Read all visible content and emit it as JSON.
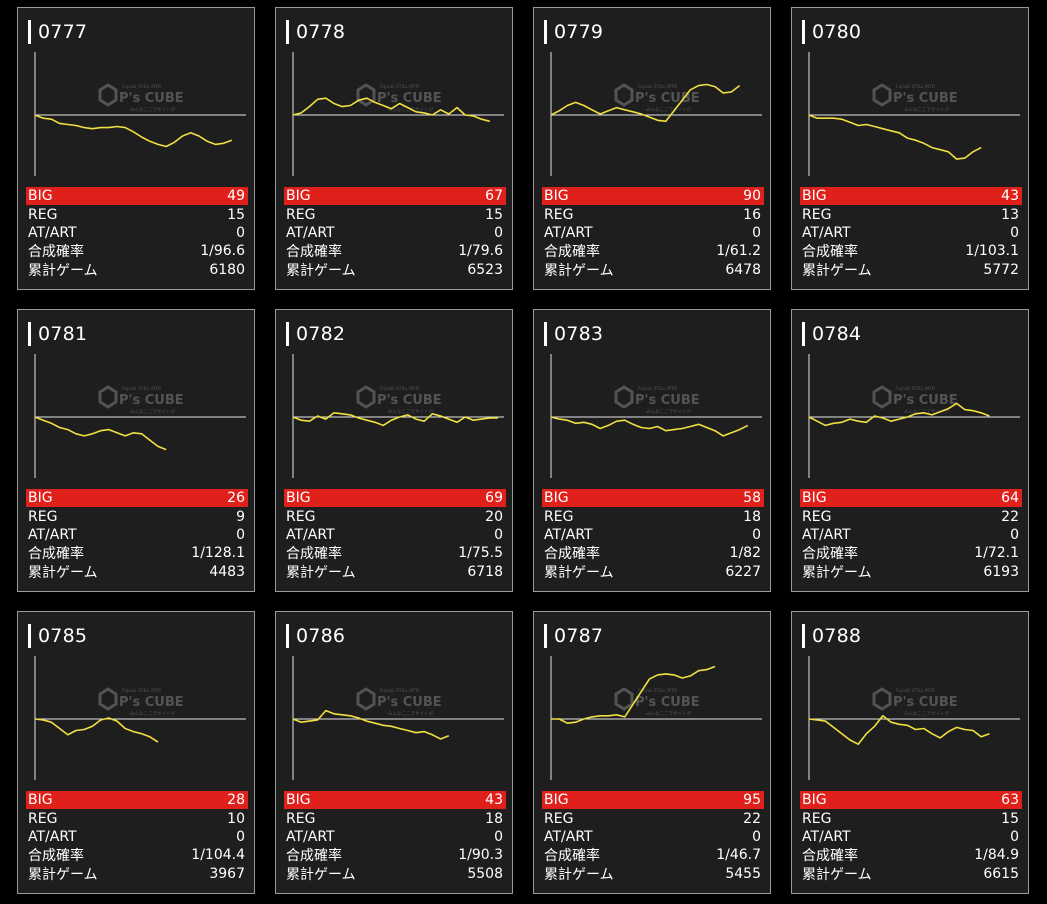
{
  "colors": {
    "graph_line": "#f0e040",
    "big_bg": "#e0201b",
    "card_bg": "#1e1e1e"
  },
  "watermark": {
    "brand": "P's CUBE",
    "small_top": "Fujinki STILL MTR",
    "small_bottom": "みんなここでサイトが"
  },
  "labels": {
    "big": "BIG",
    "reg": "REG",
    "atart": "AT/ART",
    "rate": "合成確率",
    "games": "累計ゲーム"
  },
  "machines": [
    {
      "number": "0777",
      "big": "49",
      "reg": "15",
      "atart": "0",
      "rate": "1/96.6",
      "games": "6180",
      "graph": [
        0,
        -3,
        -4,
        -8,
        -9,
        -10,
        -12,
        -13,
        -12,
        -12,
        -11,
        -12,
        -16,
        -21,
        -25,
        -28,
        -30,
        -26,
        -20,
        -17,
        -20,
        -25,
        -28,
        -27,
        -24
      ]
    },
    {
      "number": "0778",
      "big": "67",
      "reg": "15",
      "atart": "0",
      "rate": "1/79.6",
      "games": "6523",
      "graph": [
        0,
        2,
        8,
        15,
        16,
        11,
        8,
        9,
        14,
        16,
        12,
        9,
        6,
        11,
        7,
        3,
        2,
        0,
        5,
        1,
        7,
        0,
        -1,
        -4,
        -6
      ]
    },
    {
      "number": "0779",
      "big": "90",
      "reg": "16",
      "atart": "0",
      "rate": "1/61.2",
      "games": "6478",
      "graph": [
        0,
        4,
        9,
        12,
        9,
        5,
        1,
        4,
        7,
        5,
        3,
        1,
        -2,
        -5,
        -6,
        4,
        14,
        24,
        28,
        29,
        27,
        21,
        22,
        28
      ]
    },
    {
      "number": "0780",
      "big": "43",
      "reg": "13",
      "atart": "0",
      "rate": "1/103.1",
      "games": "5772",
      "graph": [
        0,
        -3,
        -3,
        -3,
        -4,
        -7,
        -10,
        -9,
        -11,
        -13,
        -15,
        -17,
        -22,
        -24,
        -27,
        -31,
        -33,
        -35,
        -42,
        -41,
        -35,
        -31
      ]
    },
    {
      "number": "0781",
      "big": "26",
      "reg": "9",
      "atart": "0",
      "rate": "1/128.1",
      "games": "4483",
      "graph": [
        0,
        -3,
        -6,
        -10,
        -12,
        -16,
        -18,
        -16,
        -13,
        -12,
        -15,
        -18,
        -15,
        -16,
        -22,
        -28,
        -31
      ]
    },
    {
      "number": "0782",
      "big": "69",
      "reg": "20",
      "atart": "0",
      "rate": "1/75.5",
      "games": "6718",
      "graph": [
        0,
        -3,
        -4,
        1,
        -2,
        4,
        3,
        2,
        -1,
        -3,
        -5,
        -8,
        -3,
        0,
        2,
        -2,
        -4,
        3,
        1,
        -2,
        -5,
        0,
        -3,
        -2,
        -1,
        -1
      ]
    },
    {
      "number": "0783",
      "big": "58",
      "reg": "18",
      "atart": "0",
      "rate": "1/82",
      "games": "6227",
      "graph": [
        0,
        -2,
        -3,
        -6,
        -5,
        -7,
        -11,
        -8,
        -4,
        -3,
        -7,
        -10,
        -11,
        -9,
        -13,
        -12,
        -11,
        -9,
        -7,
        -10,
        -13,
        -18,
        -15,
        -12,
        -8
      ]
    },
    {
      "number": "0784",
      "big": "64",
      "reg": "22",
      "atart": "0",
      "rate": "1/72.1",
      "games": "6193",
      "graph": [
        0,
        -4,
        -8,
        -6,
        -5,
        -2,
        -4,
        -5,
        1,
        -1,
        -4,
        -2,
        0,
        3,
        4,
        2,
        5,
        8,
        13,
        7,
        6,
        4,
        1
      ]
    },
    {
      "number": "0785",
      "big": "28",
      "reg": "10",
      "atart": "0",
      "rate": "1/104.4",
      "games": "3967",
      "graph": [
        0,
        -1,
        -3,
        -9,
        -15,
        -11,
        -10,
        -7,
        -1,
        1,
        -2,
        -9,
        -12,
        -14,
        -17,
        -22
      ]
    },
    {
      "number": "0786",
      "big": "43",
      "reg": "18",
      "atart": "0",
      "rate": "1/90.3",
      "games": "5508",
      "graph": [
        0,
        -3,
        -2,
        -1,
        8,
        5,
        4,
        3,
        1,
        -2,
        -4,
        -6,
        -7,
        -9,
        -11,
        -13,
        -12,
        -15,
        -19,
        -16
      ]
    },
    {
      "number": "0787",
      "big": "95",
      "reg": "22",
      "atart": "0",
      "rate": "1/46.7",
      "games": "5455",
      "graph": [
        0,
        0,
        -4,
        -3,
        0,
        2,
        3,
        3,
        4,
        2,
        14,
        26,
        38,
        42,
        43,
        42,
        39,
        41,
        46,
        47,
        50
      ]
    },
    {
      "number": "0788",
      "big": "63",
      "reg": "15",
      "atart": "0",
      "rate": "1/84.9",
      "games": "6615",
      "graph": [
        0,
        -1,
        -2,
        -8,
        -14,
        -20,
        -24,
        -14,
        -7,
        3,
        -3,
        -5,
        -6,
        -10,
        -9,
        -14,
        -18,
        -12,
        -8,
        -10,
        -11,
        -17,
        -14
      ]
    }
  ]
}
